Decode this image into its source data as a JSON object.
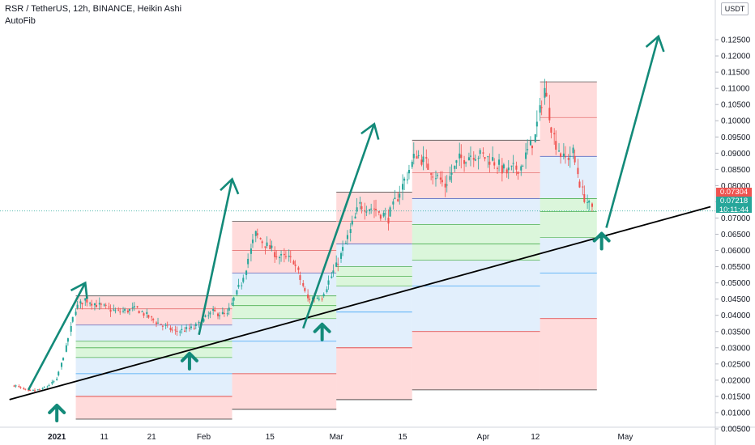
{
  "header": {
    "title": "RSR / TetherUS, 12h, BINANCE, Heikin Ashi",
    "indicator": "AutoFib"
  },
  "price_axis": {
    "currency": "USDT"
  },
  "price_tags": {
    "marker_price": "0.07304",
    "last_price": "0.07218",
    "countdown": "10:11:44"
  },
  "colors": {
    "up": "#26a69a",
    "down": "#ef5350",
    "arrow": "#138a79",
    "trendline": "#000000",
    "fib_red": "rgba(255,153,153,0.35)",
    "fib_green": "rgba(153,230,153,0.35)",
    "fib_blue": "rgba(173,210,245,0.35)"
  },
  "chart_data": {
    "type": "candlestick",
    "ylim": [
      0.005,
      0.13
    ],
    "y_ticks": [
      "0.12500",
      "0.12000",
      "0.11500",
      "0.11000",
      "0.10500",
      "0.10000",
      "0.09500",
      "0.09000",
      "0.08500",
      "0.08000",
      "0.07500",
      "0.07000",
      "0.06500",
      "0.06000",
      "0.05500",
      "0.05000",
      "0.04500",
      "0.04000",
      "0.03500",
      "0.03000",
      "0.02500",
      "0.02000",
      "0.01500",
      "0.01000",
      "0.00500"
    ],
    "x_ticks": [
      {
        "label": "2021",
        "date": "2021-01-01"
      },
      {
        "label": "11",
        "date": "2021-01-11"
      },
      {
        "label": "21",
        "date": "2021-01-21"
      },
      {
        "label": "Feb",
        "date": "2021-02-01"
      },
      {
        "label": "15",
        "date": "2021-02-15"
      },
      {
        "label": "Mar",
        "date": "2021-03-01"
      },
      {
        "label": "15",
        "date": "2021-03-15"
      },
      {
        "label": "Apr",
        "date": "2021-04-01"
      },
      {
        "label": "12",
        "date": "2021-04-12"
      },
      {
        "label": "May",
        "date": "2021-05-01"
      }
    ],
    "price_path": [
      [
        "2020-12-23",
        0.0185
      ],
      [
        "2020-12-26",
        0.0165
      ],
      [
        "2020-12-29",
        0.0172
      ],
      [
        "2021-01-01",
        0.02
      ],
      [
        "2021-01-03",
        0.03
      ],
      [
        "2021-01-05",
        0.042
      ],
      [
        "2021-01-07",
        0.045
      ],
      [
        "2021-01-10",
        0.043
      ],
      [
        "2021-01-14",
        0.041
      ],
      [
        "2021-01-18",
        0.042
      ],
      [
        "2021-01-22",
        0.038
      ],
      [
        "2021-01-26",
        0.035
      ],
      [
        "2021-01-30",
        0.036
      ],
      [
        "2021-02-03",
        0.041
      ],
      [
        "2021-02-06",
        0.04
      ],
      [
        "2021-02-09",
        0.05
      ],
      [
        "2021-02-12",
        0.065
      ],
      [
        "2021-02-14",
        0.062
      ],
      [
        "2021-02-17",
        0.058
      ],
      [
        "2021-02-20",
        0.057
      ],
      [
        "2021-02-23",
        0.045
      ],
      [
        "2021-02-26",
        0.046
      ],
      [
        "2021-03-01",
        0.055
      ],
      [
        "2021-03-03",
        0.062
      ],
      [
        "2021-03-06",
        0.074
      ],
      [
        "2021-03-09",
        0.073
      ],
      [
        "2021-03-12",
        0.07
      ],
      [
        "2021-03-15",
        0.08
      ],
      [
        "2021-03-18",
        0.09
      ],
      [
        "2021-03-21",
        0.085
      ],
      [
        "2021-03-24",
        0.08
      ],
      [
        "2021-03-27",
        0.088
      ],
      [
        "2021-03-30",
        0.09
      ],
      [
        "2021-04-03",
        0.088
      ],
      [
        "2021-04-06",
        0.084
      ],
      [
        "2021-04-09",
        0.086
      ],
      [
        "2021-04-12",
        0.095
      ],
      [
        "2021-04-14",
        0.11
      ],
      [
        "2021-04-16",
        0.095
      ],
      [
        "2021-04-18",
        0.088
      ],
      [
        "2021-04-20",
        0.09
      ],
      [
        "2021-04-22",
        0.078
      ],
      [
        "2021-04-24",
        0.0722
      ]
    ],
    "fib_zones": [
      {
        "start": "2021-01-05",
        "end": "2021-02-07",
        "levels": [
          0.046,
          0.042,
          0.037,
          0.032,
          0.03,
          0.027,
          0.022,
          0.015,
          0.008
        ]
      },
      {
        "start": "2021-02-07",
        "end": "2021-03-01",
        "levels": [
          0.069,
          0.06,
          0.053,
          0.046,
          0.043,
          0.039,
          0.032,
          0.022,
          0.011
        ]
      },
      {
        "start": "2021-03-01",
        "end": "2021-03-17",
        "levels": [
          0.078,
          0.069,
          0.062,
          0.055,
          0.052,
          0.049,
          0.041,
          0.03,
          0.014
        ]
      },
      {
        "start": "2021-03-17",
        "end": "2021-04-13",
        "levels": [
          0.094,
          0.084,
          0.076,
          0.068,
          0.062,
          0.057,
          0.049,
          0.035,
          0.017
        ]
      },
      {
        "start": "2021-04-13",
        "end": "2021-04-25",
        "levels": [
          0.112,
          0.101,
          0.089,
          0.076,
          0.072,
          0.064,
          0.053,
          0.039,
          0.017
        ]
      }
    ],
    "trendline": [
      [
        "2020-12-22",
        0.014
      ],
      [
        "2021-05-19",
        0.0735
      ]
    ],
    "drawn_arrows": [
      {
        "from": [
          "2020-12-26",
          0.017
        ],
        "to": [
          "2021-01-07",
          0.05
        ]
      },
      {
        "from": [
          "2021-01-31",
          0.034
        ],
        "to": [
          "2021-02-07",
          0.082
        ]
      },
      {
        "from": [
          "2021-02-22",
          0.036
        ],
        "to": [
          "2021-03-09",
          0.099
        ]
      },
      {
        "from": [
          "2021-04-27",
          0.067
        ],
        "to": [
          "2021-05-08",
          0.126
        ]
      }
    ],
    "signal_arrows": [
      {
        "date": "2021-01-01",
        "price": 0.01
      },
      {
        "date": "2021-01-29",
        "price": 0.026
      },
      {
        "date": "2021-02-26",
        "price": 0.035
      },
      {
        "date": "2021-04-26",
        "price": 0.063
      }
    ]
  }
}
